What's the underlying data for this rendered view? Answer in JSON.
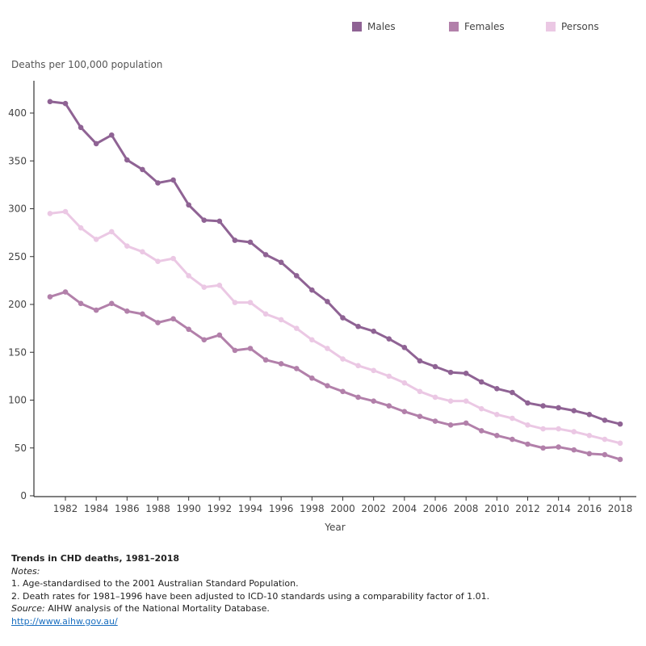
{
  "legend": [
    {
      "name": "Males",
      "color": "#8f6394"
    },
    {
      "name": "Females",
      "color": "#b280aa"
    },
    {
      "name": "Persons",
      "color": "#ebc8e4"
    }
  ],
  "chart_data": {
    "type": "line",
    "xlabel": "Year",
    "ylabel": "Deaths per 100,000 population",
    "ylim": [
      0,
      430
    ],
    "xlim": [
      1980,
      2019
    ],
    "yticks": [
      0,
      50,
      100,
      150,
      200,
      250,
      300,
      350,
      400
    ],
    "xticks": [
      1982,
      1984,
      1986,
      1988,
      1990,
      1992,
      1994,
      1996,
      1998,
      2000,
      2002,
      2004,
      2006,
      2008,
      2010,
      2012,
      2014,
      2016,
      2018
    ],
    "legend_position": "top-right",
    "grid": false,
    "x": [
      1981,
      1982,
      1983,
      1984,
      1985,
      1986,
      1987,
      1988,
      1989,
      1990,
      1991,
      1992,
      1993,
      1994,
      1995,
      1996,
      1997,
      1998,
      1999,
      2000,
      2001,
      2002,
      2003,
      2004,
      2005,
      2006,
      2007,
      2008,
      2009,
      2010,
      2011,
      2012,
      2013,
      2014,
      2015,
      2016,
      2017,
      2018
    ],
    "series": [
      {
        "name": "Males",
        "color": "#8f6394",
        "values": [
          412,
          410,
          385,
          368,
          377,
          351,
          341,
          327,
          330,
          304,
          288,
          287,
          267,
          265,
          252,
          244,
          230,
          215,
          203,
          186,
          177,
          172,
          164,
          155,
          141,
          135,
          129,
          128,
          119,
          112,
          108,
          97,
          94,
          92,
          89,
          85,
          79,
          75
        ]
      },
      {
        "name": "Persons",
        "color": "#ebc8e4",
        "values": [
          295,
          297,
          280,
          268,
          276,
          261,
          255,
          245,
          248,
          230,
          218,
          220,
          202,
          202,
          190,
          184,
          175,
          163,
          154,
          143,
          136,
          131,
          125,
          118,
          109,
          103,
          99,
          99,
          91,
          85,
          81,
          74,
          70,
          70,
          67,
          63,
          59,
          55
        ]
      },
      {
        "name": "Females",
        "color": "#b280aa",
        "values": [
          208,
          213,
          201,
          194,
          201,
          193,
          190,
          181,
          185,
          174,
          163,
          168,
          152,
          154,
          142,
          138,
          133,
          123,
          115,
          109,
          103,
          99,
          94,
          88,
          83,
          78,
          74,
          76,
          68,
          63,
          59,
          54,
          50,
          51,
          48,
          44,
          43,
          38
        ]
      }
    ]
  },
  "notes": {
    "title": "Trends in CHD deaths, 1981–2018",
    "notes_label": "Notes:",
    "note1": "1. Age-standardised to the 2001 Australian Standard Population.",
    "note2": "2. Death rates for 1981–1996 have been adjusted to ICD-10 standards using a comparability factor of 1.01.",
    "source_label": "Source:",
    "source_text": " AIHW analysis of the National Mortality Database.",
    "link": "http://www.aihw.gov.au/"
  }
}
